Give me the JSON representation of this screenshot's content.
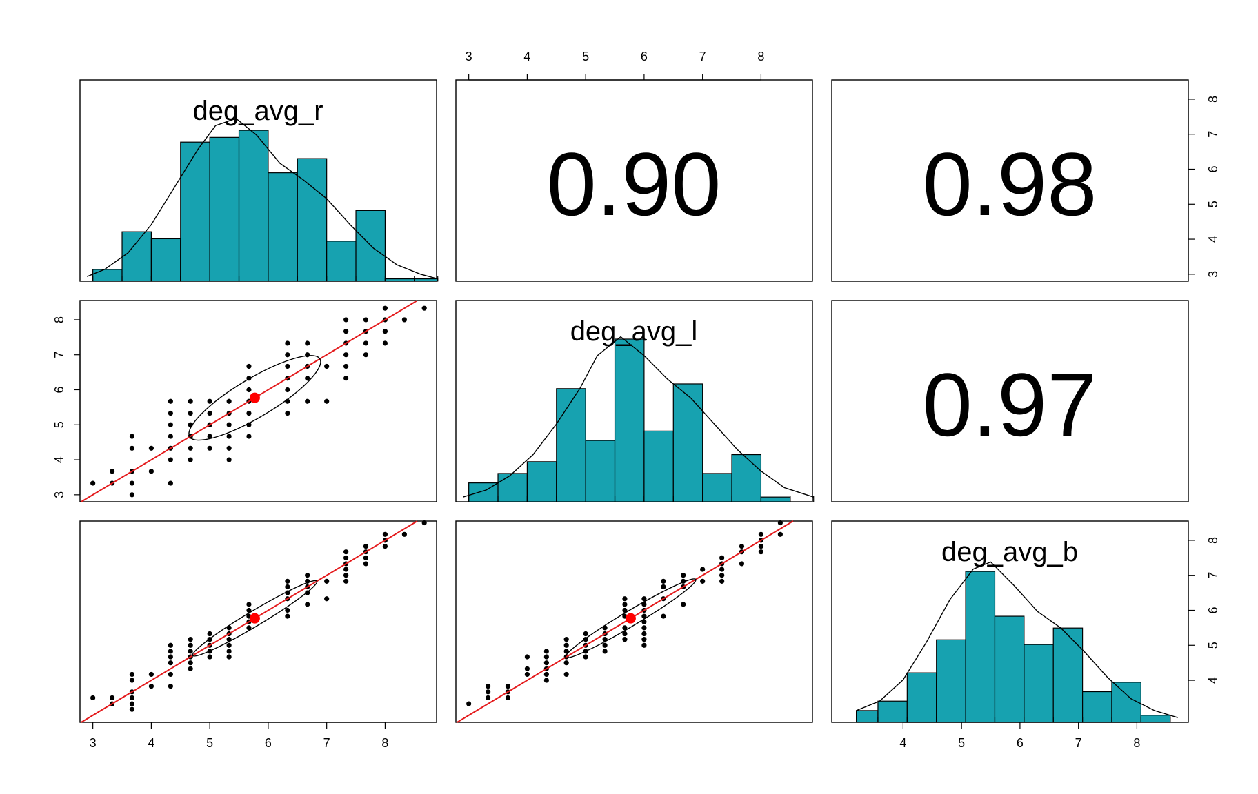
{
  "chart_data": {
    "type": "pairs",
    "variables": [
      "deg_avg_r",
      "deg_avg_l",
      "deg_avg_b"
    ],
    "correlations": [
      {
        "row": 0,
        "col": 1,
        "label": "0.90",
        "value": 0.9
      },
      {
        "row": 0,
        "col": 2,
        "label": "0.98",
        "value": 0.98
      },
      {
        "row": 1,
        "col": 2,
        "label": "0.97",
        "value": 0.97
      }
    ],
    "xlim": [
      2.78,
      8.88
    ],
    "ylim": [
      2.8,
      8.55
    ],
    "ticks": [
      3,
      4,
      5,
      6,
      7,
      8
    ],
    "ticks_b": [
      4,
      5,
      6,
      7,
      8
    ],
    "means": {
      "r": 5.77,
      "l": 5.77,
      "b": 5.77
    },
    "histograms": {
      "deg_avg_r": {
        "breaks": [
          3.0,
          3.5,
          4.0,
          4.5,
          5.0,
          5.5,
          6.0,
          6.5,
          7.0,
          7.5,
          8.0,
          8.5,
          8.9
        ],
        "heights": [
          0.05,
          0.21,
          0.18,
          0.59,
          0.61,
          0.64,
          0.46,
          0.52,
          0.17,
          0.3,
          0.01,
          0.01
        ],
        "density": [
          [
            2.9,
            0.02
          ],
          [
            3.2,
            0.05
          ],
          [
            3.6,
            0.12
          ],
          [
            4.0,
            0.24
          ],
          [
            4.4,
            0.4
          ],
          [
            4.8,
            0.56
          ],
          [
            5.1,
            0.66
          ],
          [
            5.45,
            0.69
          ],
          [
            5.8,
            0.62
          ],
          [
            6.2,
            0.5
          ],
          [
            6.6,
            0.43
          ],
          [
            7.0,
            0.35
          ],
          [
            7.4,
            0.24
          ],
          [
            7.8,
            0.14
          ],
          [
            8.2,
            0.07
          ],
          [
            8.6,
            0.03
          ],
          [
            8.9,
            0.01
          ]
        ]
      },
      "deg_avg_l": {
        "breaks": [
          3.0,
          3.5,
          4.0,
          4.5,
          5.0,
          5.5,
          6.0,
          6.5,
          7.0,
          7.5,
          8.0,
          8.5,
          8.9
        ],
        "heights": [
          0.08,
          0.12,
          0.17,
          0.48,
          0.26,
          0.69,
          0.3,
          0.5,
          0.12,
          0.2,
          0.02,
          0.0
        ],
        "density": [
          [
            2.9,
            0.02
          ],
          [
            3.3,
            0.05
          ],
          [
            3.7,
            0.11
          ],
          [
            4.1,
            0.2
          ],
          [
            4.5,
            0.33
          ],
          [
            4.9,
            0.48
          ],
          [
            5.2,
            0.62
          ],
          [
            5.6,
            0.7
          ],
          [
            6.0,
            0.62
          ],
          [
            6.4,
            0.52
          ],
          [
            6.8,
            0.44
          ],
          [
            7.2,
            0.33
          ],
          [
            7.6,
            0.22
          ],
          [
            8.0,
            0.13
          ],
          [
            8.4,
            0.06
          ],
          [
            8.9,
            0.02
          ]
        ]
      },
      "deg_avg_b": {
        "breaks": [
          3.2,
          3.57,
          4.07,
          4.57,
          5.07,
          5.57,
          6.07,
          6.57,
          7.07,
          7.57,
          8.07,
          8.57
        ],
        "heights": [
          0.05,
          0.09,
          0.21,
          0.35,
          0.64,
          0.45,
          0.33,
          0.4,
          0.13,
          0.17,
          0.03
        ],
        "density": [
          [
            3.2,
            0.05
          ],
          [
            3.6,
            0.09
          ],
          [
            4.0,
            0.18
          ],
          [
            4.4,
            0.34
          ],
          [
            4.8,
            0.52
          ],
          [
            5.2,
            0.65
          ],
          [
            5.5,
            0.68
          ],
          [
            5.9,
            0.58
          ],
          [
            6.3,
            0.47
          ],
          [
            6.7,
            0.4
          ],
          [
            7.1,
            0.3
          ],
          [
            7.5,
            0.19
          ],
          [
            7.9,
            0.1
          ],
          [
            8.3,
            0.05
          ],
          [
            8.7,
            0.02
          ]
        ]
      }
    },
    "scatter": {
      "r_vs_l": [
        [
          3,
          3.33
        ],
        [
          3.33,
          3.33
        ],
        [
          3.33,
          3.67
        ],
        [
          3.67,
          3.0
        ],
        [
          3.67,
          3.33
        ],
        [
          3.67,
          3.67
        ],
        [
          3.67,
          4.33
        ],
        [
          3.67,
          4.67
        ],
        [
          4,
          3.67
        ],
        [
          4,
          4.33
        ],
        [
          4.33,
          3.33
        ],
        [
          4.33,
          4.0
        ],
        [
          4.33,
          4.33
        ],
        [
          4.33,
          4.67
        ],
        [
          4.33,
          5.0
        ],
        [
          4.33,
          5.33
        ],
        [
          4.33,
          5.67
        ],
        [
          4.67,
          4.0
        ],
        [
          4.67,
          4.33
        ],
        [
          4.67,
          4.67
        ],
        [
          4.67,
          5.0
        ],
        [
          4.67,
          5.33
        ],
        [
          4.67,
          5.67
        ],
        [
          5,
          4.33
        ],
        [
          5,
          4.67
        ],
        [
          5,
          5.0
        ],
        [
          5,
          5.33
        ],
        [
          5,
          5.67
        ],
        [
          5.33,
          4.0
        ],
        [
          5.33,
          4.33
        ],
        [
          5.33,
          4.67
        ],
        [
          5.33,
          5.0
        ],
        [
          5.33,
          5.33
        ],
        [
          5.33,
          5.67
        ],
        [
          5.67,
          4.67
        ],
        [
          5.67,
          5.0
        ],
        [
          5.67,
          5.33
        ],
        [
          5.67,
          5.67
        ],
        [
          5.67,
          6.0
        ],
        [
          5.67,
          6.33
        ],
        [
          5.67,
          6.67
        ],
        [
          6.33,
          5.33
        ],
        [
          6.33,
          5.67
        ],
        [
          6.33,
          6.0
        ],
        [
          6.33,
          6.33
        ],
        [
          6.33,
          6.67
        ],
        [
          6.33,
          7.0
        ],
        [
          6.33,
          7.33
        ],
        [
          6.67,
          5.67
        ],
        [
          6.67,
          6.33
        ],
        [
          6.67,
          6.67
        ],
        [
          6.67,
          7.0
        ],
        [
          6.67,
          7.33
        ],
        [
          7,
          5.67
        ],
        [
          7,
          6.67
        ],
        [
          7.33,
          6.33
        ],
        [
          7.33,
          6.67
        ],
        [
          7.33,
          7.0
        ],
        [
          7.33,
          7.33
        ],
        [
          7.33,
          7.67
        ],
        [
          7.33,
          8.0
        ],
        [
          7.67,
          7.0
        ],
        [
          7.67,
          7.33
        ],
        [
          7.67,
          7.67
        ],
        [
          7.67,
          8.0
        ],
        [
          8,
          7.33
        ],
        [
          8,
          7.67
        ],
        [
          8,
          8.0
        ],
        [
          8,
          8.33
        ],
        [
          8.33,
          8.0
        ],
        [
          8.67,
          8.33
        ]
      ],
      "r_vs_b": [
        [
          3,
          3.5
        ],
        [
          3.33,
          3.33
        ],
        [
          3.33,
          3.5
        ],
        [
          3.67,
          3.17
        ],
        [
          3.67,
          3.33
        ],
        [
          3.67,
          3.5
        ],
        [
          3.67,
          3.67
        ],
        [
          3.67,
          4.0
        ],
        [
          3.67,
          4.17
        ],
        [
          4,
          3.83
        ],
        [
          4,
          4.17
        ],
        [
          4.33,
          3.83
        ],
        [
          4.33,
          4.17
        ],
        [
          4.33,
          4.5
        ],
        [
          4.33,
          4.67
        ],
        [
          4.33,
          4.83
        ],
        [
          4.33,
          5.0
        ],
        [
          4.67,
          4.33
        ],
        [
          4.67,
          4.5
        ],
        [
          4.67,
          4.67
        ],
        [
          4.67,
          4.83
        ],
        [
          4.67,
          5.0
        ],
        [
          4.67,
          5.17
        ],
        [
          5,
          4.67
        ],
        [
          5,
          4.83
        ],
        [
          5,
          5.0
        ],
        [
          5,
          5.17
        ],
        [
          5,
          5.33
        ],
        [
          5.33,
          4.67
        ],
        [
          5.33,
          4.83
        ],
        [
          5.33,
          5.0
        ],
        [
          5.33,
          5.17
        ],
        [
          5.33,
          5.33
        ],
        [
          5.33,
          5.5
        ],
        [
          5.67,
          5.5
        ],
        [
          5.67,
          5.67
        ],
        [
          5.67,
          5.83
        ],
        [
          5.67,
          6.0
        ],
        [
          5.67,
          6.17
        ],
        [
          6.33,
          5.83
        ],
        [
          6.33,
          6.0
        ],
        [
          6.33,
          6.33
        ],
        [
          6.33,
          6.5
        ],
        [
          6.33,
          6.67
        ],
        [
          6.33,
          6.83
        ],
        [
          6.67,
          6.17
        ],
        [
          6.67,
          6.5
        ],
        [
          6.67,
          6.67
        ],
        [
          6.67,
          6.83
        ],
        [
          6.67,
          7.0
        ],
        [
          7,
          6.33
        ],
        [
          7,
          6.83
        ],
        [
          7.33,
          6.83
        ],
        [
          7.33,
          7.0
        ],
        [
          7.33,
          7.17
        ],
        [
          7.33,
          7.33
        ],
        [
          7.33,
          7.5
        ],
        [
          7.33,
          7.67
        ],
        [
          7.67,
          7.33
        ],
        [
          7.67,
          7.5
        ],
        [
          7.67,
          7.67
        ],
        [
          7.67,
          7.83
        ],
        [
          8,
          7.83
        ],
        [
          8,
          8.0
        ],
        [
          8,
          8.17
        ],
        [
          8.33,
          8.17
        ],
        [
          8.67,
          8.5
        ]
      ],
      "l_vs_b": [
        [
          3,
          3.33
        ],
        [
          3.33,
          3.5
        ],
        [
          3.33,
          3.67
        ],
        [
          3.33,
          3.83
        ],
        [
          3.67,
          3.5
        ],
        [
          3.67,
          3.67
        ],
        [
          3.67,
          3.83
        ],
        [
          4,
          4.17
        ],
        [
          4,
          4.33
        ],
        [
          4,
          4.67
        ],
        [
          4.33,
          4.0
        ],
        [
          4.33,
          4.17
        ],
        [
          4.33,
          4.33
        ],
        [
          4.33,
          4.5
        ],
        [
          4.33,
          4.67
        ],
        [
          4.33,
          4.83
        ],
        [
          4.67,
          4.17
        ],
        [
          4.67,
          4.5
        ],
        [
          4.67,
          4.67
        ],
        [
          4.67,
          4.83
        ],
        [
          4.67,
          5.0
        ],
        [
          4.67,
          5.17
        ],
        [
          5,
          4.67
        ],
        [
          5,
          4.83
        ],
        [
          5,
          5.0
        ],
        [
          5,
          5.17
        ],
        [
          5,
          5.33
        ],
        [
          5.33,
          4.83
        ],
        [
          5.33,
          5.0
        ],
        [
          5.33,
          5.17
        ],
        [
          5.33,
          5.33
        ],
        [
          5.33,
          5.5
        ],
        [
          5.67,
          5.17
        ],
        [
          5.67,
          5.33
        ],
        [
          5.67,
          5.5
        ],
        [
          5.67,
          5.83
        ],
        [
          5.67,
          6.0
        ],
        [
          5.67,
          6.17
        ],
        [
          5.67,
          6.33
        ],
        [
          6,
          5.0
        ],
        [
          6,
          5.17
        ],
        [
          6,
          5.33
        ],
        [
          6,
          5.5
        ],
        [
          6,
          5.67
        ],
        [
          6,
          5.83
        ],
        [
          6,
          6.0
        ],
        [
          6,
          6.17
        ],
        [
          6,
          6.33
        ],
        [
          6.33,
          5.83
        ],
        [
          6.33,
          6.33
        ],
        [
          6.33,
          6.67
        ],
        [
          6.33,
          6.83
        ],
        [
          6.67,
          6.17
        ],
        [
          6.67,
          6.67
        ],
        [
          6.67,
          6.83
        ],
        [
          6.67,
          7.0
        ],
        [
          7,
          6.83
        ],
        [
          7,
          7.17
        ],
        [
          7.33,
          6.83
        ],
        [
          7.33,
          7.0
        ],
        [
          7.33,
          7.17
        ],
        [
          7.33,
          7.33
        ],
        [
          7.33,
          7.5
        ],
        [
          7.67,
          7.33
        ],
        [
          7.67,
          7.67
        ],
        [
          7.67,
          7.83
        ],
        [
          8,
          7.67
        ],
        [
          8,
          7.83
        ],
        [
          8,
          8.0
        ],
        [
          8,
          8.17
        ],
        [
          8.33,
          8.17
        ],
        [
          8.33,
          8.5
        ]
      ]
    }
  }
}
